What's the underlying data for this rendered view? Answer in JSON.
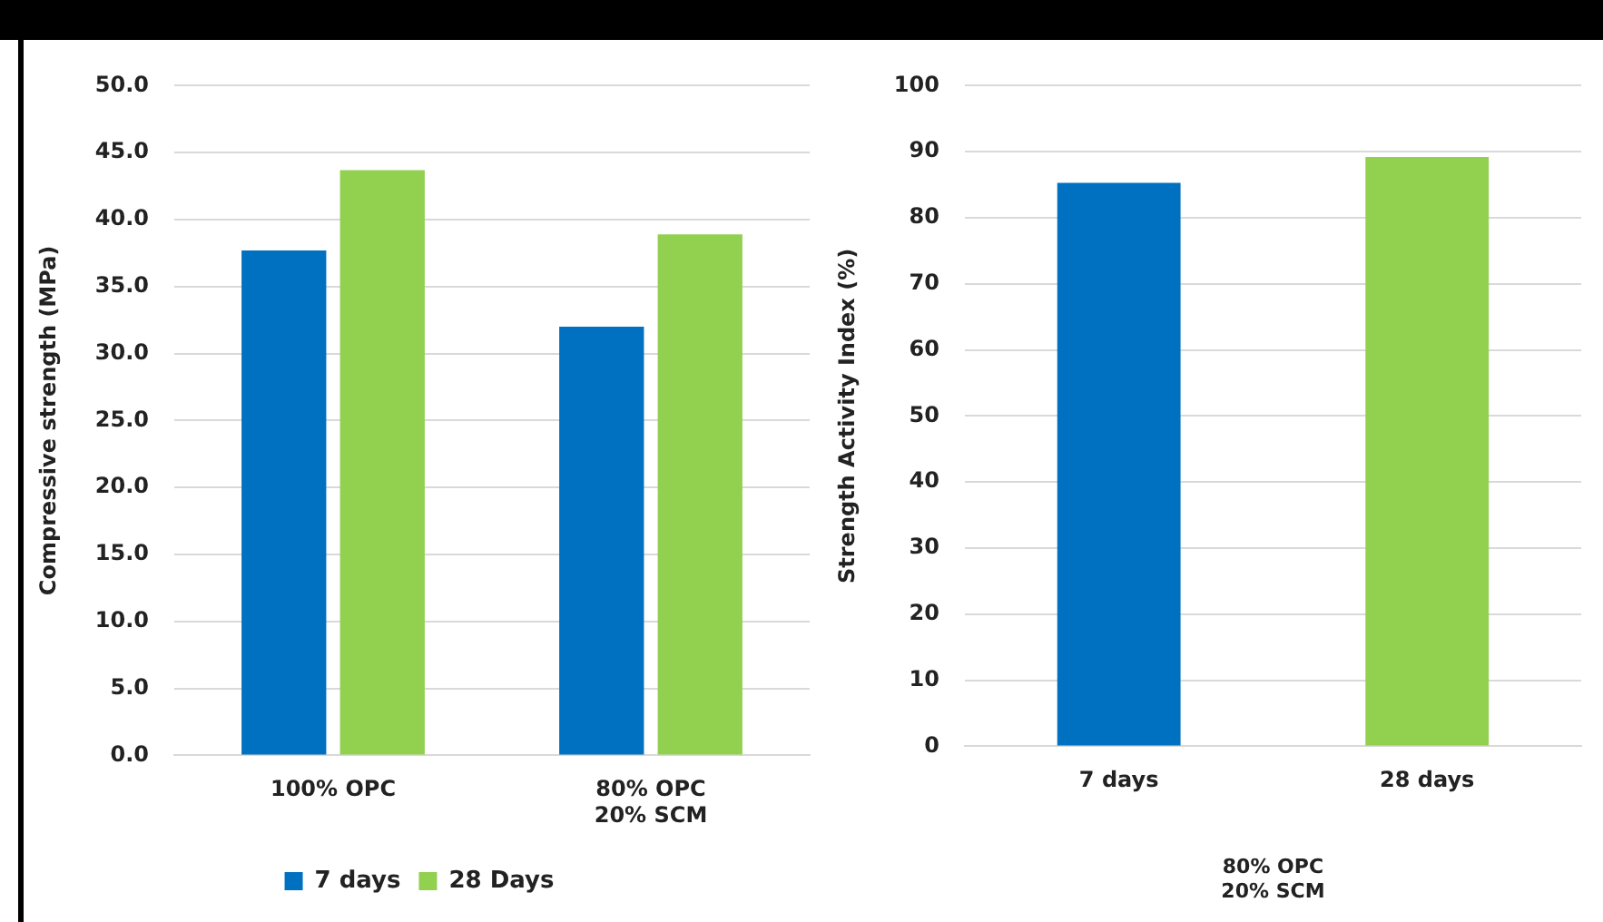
{
  "chart_data": [
    {
      "type": "bar",
      "ylabel": "Compressive strength (MPa)",
      "categories": [
        "100% OPC",
        "80% OPC\n20% SCM"
      ],
      "series": [
        {
          "name": "7 days",
          "color": "#0070c0",
          "values": [
            37.7,
            32.0
          ]
        },
        {
          "name": "28 Days",
          "color": "#92d050",
          "values": [
            43.7,
            38.9
          ]
        }
      ],
      "ylim": [
        0,
        50
      ],
      "yticks": [
        {
          "value": 0,
          "label": "0.0"
        },
        {
          "value": 5,
          "label": "5.0"
        },
        {
          "value": 10,
          "label": "10.0"
        },
        {
          "value": 15,
          "label": "15.0"
        },
        {
          "value": 20,
          "label": "20.0"
        },
        {
          "value": 25,
          "label": "25.0"
        },
        {
          "value": 30,
          "label": "30.0"
        },
        {
          "value": 35,
          "label": "35.0"
        },
        {
          "value": 40,
          "label": "40.0"
        },
        {
          "value": 45,
          "label": "45.0"
        },
        {
          "value": 50,
          "label": "50.0"
        }
      ],
      "grid": "y",
      "legend": "bottom"
    },
    {
      "type": "bar",
      "ylabel": "Strength Activity Index (%)",
      "xlabel": "80% OPC\n20% SCM",
      "categories": [
        "7 days",
        "28 days"
      ],
      "values": [
        85.3,
        89.2
      ],
      "colors": [
        "#0070c0",
        "#92d050"
      ],
      "ylim": [
        0,
        100
      ],
      "yticks": [
        0,
        10,
        20,
        30,
        40,
        50,
        60,
        70,
        80,
        90,
        100
      ],
      "grid": "y"
    }
  ]
}
